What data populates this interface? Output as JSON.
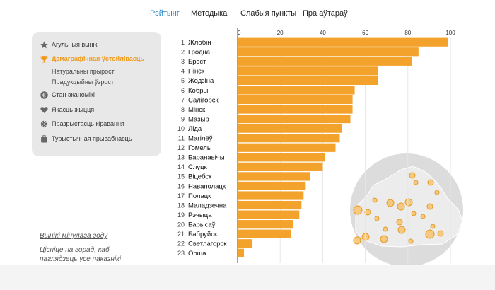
{
  "nav": {
    "items": [
      {
        "label": "Рэйтынг",
        "active": true
      },
      {
        "label": "Методыка",
        "active": false
      },
      {
        "label": "Слабыя пункты",
        "active": false
      },
      {
        "label": "Пра аўтараў",
        "active": false
      }
    ]
  },
  "sidebar": {
    "items": [
      {
        "label": "Агульныя вынікі",
        "icon": "star-icon",
        "active": false
      },
      {
        "label": "Дэмаграфічная ўстойлівасць",
        "icon": "trophy-icon",
        "active": true
      },
      {
        "label": "Натуральны прырост",
        "sub": true
      },
      {
        "label": "Прадукцыйны ўзрост",
        "sub": true
      },
      {
        "label": "Стан эканомікі",
        "icon": "currency-icon",
        "active": false
      },
      {
        "label": "Якасць жыцця",
        "icon": "heart-icon",
        "active": false
      },
      {
        "label": "Празрыстасць кiравання",
        "icon": "gear-icon",
        "active": false
      },
      {
        "label": "Турыстычная прывабнасць",
        "icon": "luggage-icon",
        "active": false
      }
    ]
  },
  "prev_results": "Вынікі мінулага году",
  "hint": "Цісніце на горад, каб паглядзець усе паказнікі",
  "colors": {
    "bar": "#f3a22b",
    "accent": "#ef9a1a",
    "active_nav": "#2b86c5",
    "map": "#dcdcdc"
  },
  "chart_data": {
    "type": "bar",
    "orientation": "horizontal",
    "xlim": [
      0,
      100
    ],
    "ticks": [
      0,
      20,
      40,
      60,
      80,
      100
    ],
    "categories": [
      "Жлобін",
      "Гродна",
      "Брэст",
      "Пінск",
      "Жодзіна",
      "Кобрын",
      "Салігорск",
      "Мінск",
      "Мазыр",
      "Ліда",
      "Магілёў",
      "Гомель",
      "Баранавічы",
      "Слуцк",
      "Віцебск",
      "Наваполацк",
      "Полацк",
      "Маладзечна",
      "Рэчыца",
      "Барысаў",
      "Бабруйск",
      "Светлагорск",
      "Орша"
    ],
    "ranks": [
      "1",
      "2",
      "3",
      "4",
      "5",
      "6",
      "7",
      "8",
      "9",
      "10",
      "11",
      "12",
      "13",
      "14",
      "15",
      "16",
      "17",
      "18",
      "19",
      "20",
      "21",
      "22",
      "23"
    ],
    "values": [
      99,
      85,
      82,
      66,
      66,
      55,
      54,
      54,
      53,
      49,
      48,
      46,
      41,
      40,
      34,
      32,
      31,
      30,
      29,
      26,
      25,
      7,
      3
    ]
  }
}
